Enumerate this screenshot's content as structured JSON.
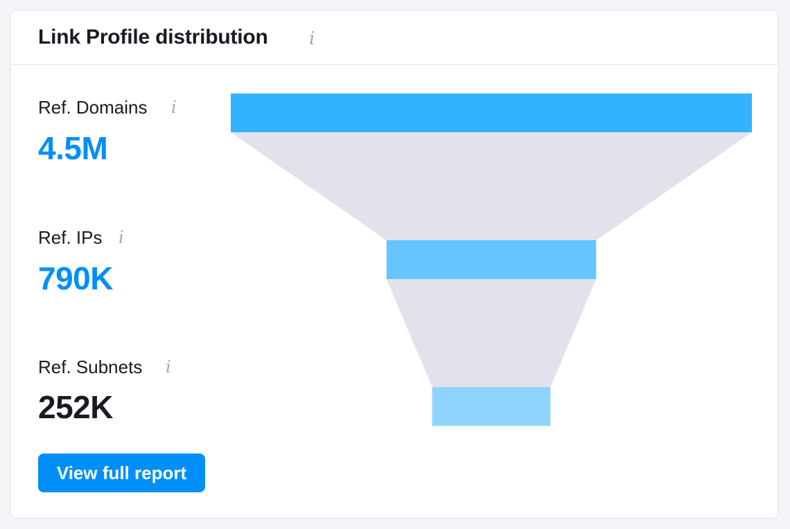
{
  "card": {
    "title": "Link Profile distribution",
    "info_glyph": "i"
  },
  "metrics": [
    {
      "label": "Ref. Domains",
      "value": "4.5M",
      "color": "#008ff8"
    },
    {
      "label": "Ref. IPs",
      "value": "790K",
      "color": "#008ff8"
    },
    {
      "label": "Ref. Subnets",
      "value": "252K",
      "color": "#191b23"
    }
  ],
  "button": {
    "label": "View full report"
  },
  "colors": {
    "accent": "#008ff8",
    "bar_1": "#33b3ff",
    "bar_2": "#66c4ff",
    "bar_3": "#8fd4ff",
    "funnel_fill": "#e1e2ec",
    "text": "#191b23",
    "muted_icon": "#a2a6b5"
  },
  "chart_data": {
    "type": "funnel",
    "categories": [
      "Ref. Domains",
      "Ref. IPs",
      "Ref. Subnets"
    ],
    "values": [
      4500000,
      790000,
      252000
    ],
    "value_labels": [
      "4.5M",
      "790K",
      "252K"
    ]
  }
}
